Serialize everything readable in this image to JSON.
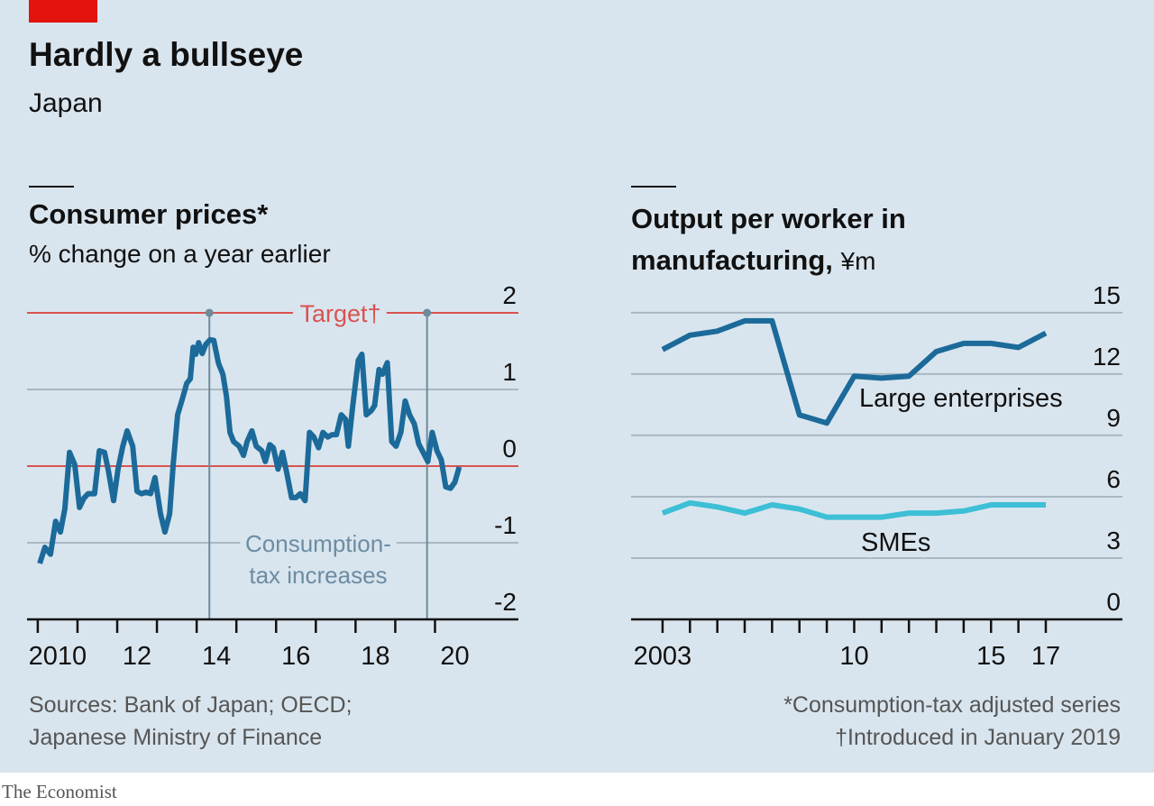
{
  "header": {
    "title": "Hardly a bullseye",
    "subtitle": "Japan"
  },
  "chart_data": [
    {
      "type": "line",
      "title": "Consumer prices*",
      "subtitle": "% change on a year earlier",
      "x": [
        2010.05,
        2010.18,
        2010.32,
        2010.45,
        2010.57,
        2010.68,
        2010.8,
        2010.93,
        2011.05,
        2011.16,
        2011.27,
        2011.43,
        2011.55,
        2011.68,
        2011.77,
        2011.91,
        2012.02,
        2012.14,
        2012.25,
        2012.39,
        2012.5,
        2012.61,
        2012.73,
        2012.84,
        2012.95,
        2013.09,
        2013.2,
        2013.32,
        2013.41,
        2013.52,
        2013.66,
        2013.75,
        2013.84,
        2013.91,
        2013.98,
        2014.05,
        2014.14,
        2014.23,
        2014.34,
        2014.43,
        2014.55,
        2014.66,
        2014.75,
        2014.84,
        2014.93,
        2015.07,
        2015.18,
        2015.27,
        2015.39,
        2015.5,
        2015.64,
        2015.73,
        2015.84,
        2015.93,
        2016.05,
        2016.16,
        2016.27,
        2016.39,
        2016.5,
        2016.61,
        2016.73,
        2016.84,
        2016.95,
        2017.07,
        2017.18,
        2017.3,
        2017.41,
        2017.52,
        2017.64,
        2017.75,
        2017.82,
        2017.93,
        2018.07,
        2018.16,
        2018.27,
        2018.39,
        2018.48,
        2018.59,
        2018.68,
        2018.8,
        2018.91,
        2019.02,
        2019.14,
        2019.25,
        2019.36,
        2019.48,
        2019.59,
        2019.7,
        2019.82,
        2019.93,
        2020.05,
        2020.16,
        2020.27,
        2020.39,
        2020.5,
        2020.61
      ],
      "series": [
        {
          "color": "#1b6a9a",
          "values": [
            -1.27,
            -1.06,
            -1.15,
            -0.72,
            -0.86,
            -0.56,
            0.18,
            0.02,
            -0.54,
            -0.42,
            -0.36,
            -0.36,
            0.2,
            0.18,
            -0.04,
            -0.45,
            -0.04,
            0.26,
            0.46,
            0.26,
            -0.33,
            -0.36,
            -0.34,
            -0.36,
            -0.15,
            -0.62,
            -0.86,
            -0.62,
            0.02,
            0.67,
            0.91,
            1.08,
            1.14,
            1.55,
            1.46,
            1.61,
            1.47,
            1.59,
            1.65,
            1.64,
            1.34,
            1.2,
            0.91,
            0.44,
            0.32,
            0.26,
            0.14,
            0.32,
            0.46,
            0.26,
            0.2,
            0.06,
            0.28,
            0.24,
            -0.04,
            0.18,
            -0.09,
            -0.41,
            -0.41,
            -0.36,
            -0.45,
            0.44,
            0.38,
            0.24,
            0.44,
            0.38,
            0.41,
            0.41,
            0.67,
            0.61,
            0.26,
            0.79,
            1.38,
            1.46,
            0.67,
            0.72,
            0.79,
            1.26,
            1.2,
            1.35,
            0.32,
            0.26,
            0.44,
            0.85,
            0.67,
            0.55,
            0.29,
            0.18,
            0.06,
            0.44,
            0.2,
            0.08,
            -0.27,
            -0.29,
            -0.21,
            -0.01
          ]
        }
      ],
      "xlim": [
        2009.73,
        2022.1
      ],
      "xticks": [
        {
          "value": 2010,
          "label": "2010"
        },
        {
          "value": 2012,
          "label": "12"
        },
        {
          "value": 2014,
          "label": "14"
        },
        {
          "value": 2016,
          "label": "16"
        },
        {
          "value": 2018,
          "label": "18"
        },
        {
          "value": 2020,
          "label": "20"
        }
      ],
      "xminorticks": [
        2011,
        2013,
        2015,
        2017,
        2019
      ],
      "ylim": [
        -2,
        2.2
      ],
      "yticks": [
        -2,
        -1,
        0,
        1,
        2
      ],
      "grid": true,
      "reference_lines": [
        {
          "value": 2,
          "label": "Target†",
          "color": "#d9534f"
        },
        {
          "value": 0,
          "color": "#d9534f"
        }
      ],
      "events": {
        "x": [
          2014.32,
          2019.8
        ],
        "label": [
          "Consumption-",
          "tax increases"
        ],
        "color": "#6f8a9a"
      }
    },
    {
      "type": "line",
      "title": "Output per worker in manufacturing,",
      "unit": "¥m",
      "x": [
        2003,
        2004,
        2005,
        2006,
        2007,
        2008,
        2009,
        2010,
        2011,
        2012,
        2013,
        2014,
        2015,
        2016,
        2017
      ],
      "series": [
        {
          "name": "Large enterprises",
          "color": "#1b6a9a",
          "values": [
            13.2,
            13.9,
            14.1,
            14.6,
            14.6,
            10.0,
            9.6,
            11.9,
            11.8,
            11.9,
            13.1,
            13.5,
            13.5,
            13.3,
            14.0
          ]
        },
        {
          "name": "SMEs",
          "color": "#3dbfd6",
          "values": [
            5.2,
            5.7,
            5.5,
            5.2,
            5.6,
            5.4,
            5.0,
            5.0,
            5.0,
            5.2,
            5.2,
            5.3,
            5.6,
            5.6,
            5.6
          ]
        }
      ],
      "xlim": [
        2001.85,
        2019.8
      ],
      "xticks": [
        {
          "value": 2003,
          "label": "2003"
        },
        {
          "value": 2010,
          "label": "10"
        },
        {
          "value": 2015,
          "label": "15"
        },
        {
          "value": 2017,
          "label": "17"
        }
      ],
      "xminorticks": [
        2004,
        2005,
        2006,
        2007,
        2008,
        2009,
        2011,
        2012,
        2013,
        2014,
        2016
      ],
      "ylim": [
        0,
        15.7
      ],
      "yticks": [
        0,
        3,
        6,
        9,
        12,
        15
      ],
      "grid": true
    }
  ],
  "footer": {
    "sources": [
      "Sources: Bank of Japan; OECD;",
      "Japanese Ministry of Finance"
    ],
    "notes": [
      "*Consumption-tax adjusted series",
      "†Introduced in January 2019"
    ],
    "brand": "The Economist"
  }
}
